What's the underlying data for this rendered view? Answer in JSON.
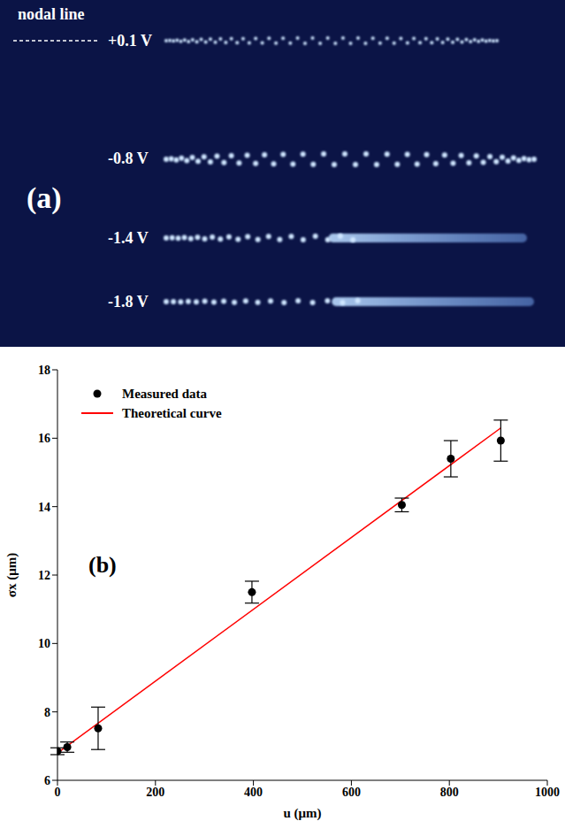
{
  "panel_a": {
    "label": "(a)",
    "nodal_line": "nodal line",
    "rows": [
      "+0.1 V",
      "-0.8 V",
      "-1.4 V",
      "-1.8 V"
    ]
  },
  "chart_data": {
    "type": "scatter",
    "x_label": "u (μm)",
    "y_label": "σx (μm)",
    "annotations": [
      "(b)"
    ],
    "xlim": [
      0,
      1000
    ],
    "ylim": [
      6,
      18
    ],
    "xticks": [
      0,
      200,
      400,
      600,
      800,
      1000
    ],
    "yticks": [
      6,
      8,
      10,
      12,
      14,
      16,
      18
    ],
    "grid": false,
    "legend": "upper left",
    "series": [
      {
        "name": "Measured data",
        "type": "scatter",
        "color": "#000000",
        "marker": "circle",
        "x": [
          0,
          20,
          83,
          397,
          703,
          803,
          905
        ],
        "values": [
          6.85,
          6.97,
          7.52,
          11.5,
          14.05,
          15.4,
          15.93
        ],
        "errors": [
          0.1,
          0.15,
          0.62,
          0.32,
          0.2,
          0.53,
          0.6
        ]
      },
      {
        "name": "Theoretical curve",
        "type": "line",
        "color": "#ff0000",
        "line_style": "solid",
        "x": [
          0,
          905
        ],
        "values": [
          6.8,
          16.3
        ]
      }
    ]
  }
}
